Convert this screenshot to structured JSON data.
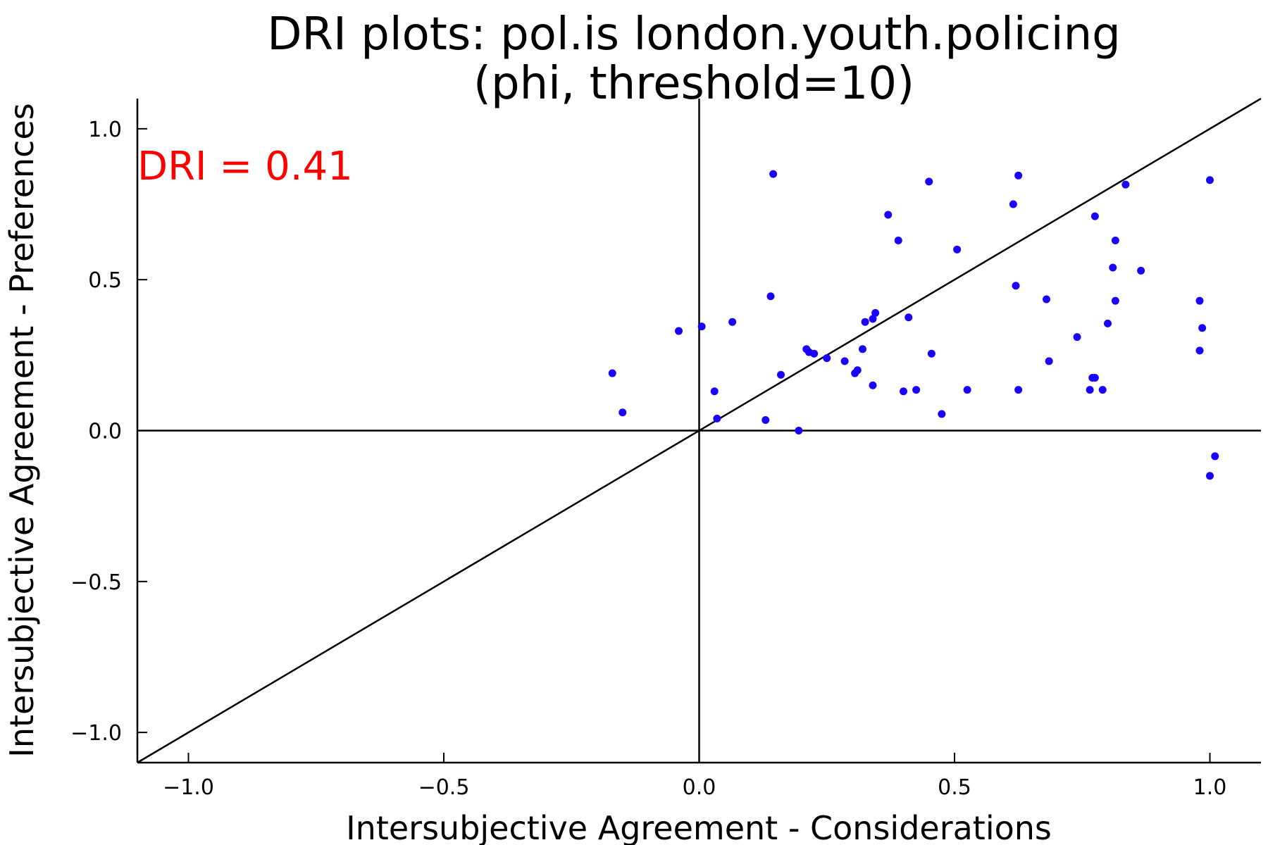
{
  "chart_data": {
    "type": "scatter",
    "title": [
      "DRI plots: pol.is london.youth.policing",
      "(phi, threshold=10)"
    ],
    "xlabel": "Intersubjective Agreement - Considerations",
    "ylabel": "Intersubjective Agreement - Preferences",
    "xlim": [
      -1.1,
      1.1
    ],
    "ylim": [
      -1.1,
      1.1
    ],
    "xticks": [
      -1.0,
      -0.5,
      0.0,
      0.5,
      1.0
    ],
    "xtick_labels": [
      "−1.0",
      "−0.5",
      "0.0",
      "0.5",
      "1.0"
    ],
    "yticks": [
      -1.0,
      -0.5,
      0.0,
      0.5,
      1.0
    ],
    "ytick_labels": [
      "−1.0",
      "−0.5",
      "0.0",
      "0.5",
      "1.0"
    ],
    "grid": false,
    "reference_lines": [
      "y = x",
      "x = 0",
      "y = 0"
    ],
    "annotation": {
      "text": "DRI = 0.41",
      "color": "#ff0000"
    },
    "point_color": "#1a00ff",
    "line_color": "#000000",
    "series": [
      {
        "x": [
          -0.17,
          -0.15,
          -0.04,
          0.005,
          0.065,
          0.145,
          0.14,
          0.03,
          0.035,
          0.13,
          0.16,
          0.195,
          0.21,
          0.215,
          0.225,
          0.25,
          0.285,
          0.305,
          0.31,
          0.32,
          0.325,
          0.34,
          0.34,
          0.345,
          0.37,
          0.39,
          0.4,
          0.41,
          0.425,
          0.45,
          0.455,
          0.475,
          0.505,
          0.525,
          0.615,
          0.62,
          0.625,
          0.625,
          0.68,
          0.685,
          0.74,
          0.765,
          0.77,
          0.775,
          0.775,
          0.79,
          0.8,
          0.81,
          0.815,
          0.815,
          0.835,
          0.865,
          0.98,
          0.98,
          0.985,
          1.0,
          1.0,
          1.01
        ],
        "y": [
          0.19,
          0.06,
          0.33,
          0.345,
          0.36,
          0.85,
          0.445,
          0.13,
          0.04,
          0.035,
          0.185,
          0.0,
          0.27,
          0.26,
          0.255,
          0.24,
          0.23,
          0.19,
          0.2,
          0.27,
          0.36,
          0.15,
          0.37,
          0.39,
          0.715,
          0.63,
          0.13,
          0.375,
          0.135,
          0.825,
          0.255,
          0.055,
          0.6,
          0.135,
          0.75,
          0.48,
          0.845,
          0.135,
          0.435,
          0.23,
          0.31,
          0.135,
          0.175,
          0.175,
          0.71,
          0.135,
          0.355,
          0.54,
          0.63,
          0.43,
          0.815,
          0.53,
          0.43,
          0.265,
          0.34,
          0.83,
          -0.15,
          -0.085
        ]
      }
    ]
  }
}
